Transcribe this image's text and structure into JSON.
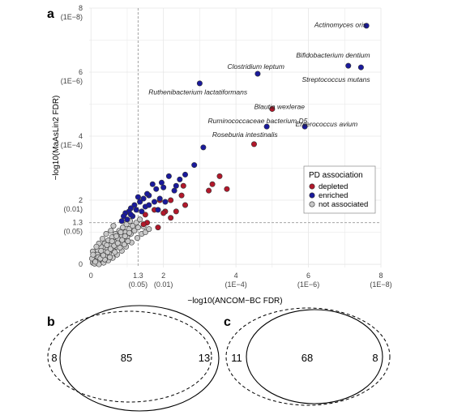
{
  "panels": {
    "a": "a",
    "b": "b",
    "c": "c"
  },
  "chart_data": {
    "type": "scatter",
    "xlabel": "−log10(ANCOM−BC FDR)",
    "ylabel": "−log10(MaAsLin2 FDR)",
    "xlim": [
      -0.05,
      8.0
    ],
    "ylim": [
      -0.1,
      8.0
    ],
    "grid": true,
    "threshold_lines": {
      "x": 1.3,
      "y": 1.3
    },
    "x_ticks": [
      {
        "v": 0,
        "label": "0",
        "sub": ""
      },
      {
        "v": 1.3,
        "label": "1.3",
        "sub": "(0.05)"
      },
      {
        "v": 2,
        "label": "2",
        "sub": "(0.01)"
      },
      {
        "v": 4,
        "label": "4",
        "sub": "(1E−4)"
      },
      {
        "v": 6,
        "label": "6",
        "sub": "(1E−6)"
      },
      {
        "v": 8,
        "label": "8",
        "sub": "(1E−8)"
      }
    ],
    "y_ticks": [
      {
        "v": 0,
        "label": "0",
        "sub": ""
      },
      {
        "v": 1.3,
        "label": "1.3",
        "sub": "(0.05)"
      },
      {
        "v": 2,
        "label": "2",
        "sub": "(0.01)"
      },
      {
        "v": 4,
        "label": "4",
        "sub": "(1E−4)"
      },
      {
        "v": 6,
        "label": "6",
        "sub": "(1E−6)"
      },
      {
        "v": 8,
        "label": "8",
        "sub": "(1E−8)"
      }
    ],
    "legend": {
      "title": "PD association",
      "position": "right",
      "entries": [
        {
          "label": "depleted",
          "color": "#b2182b"
        },
        {
          "label": "enriched",
          "color": "#1a1a9c"
        },
        {
          "label": "not associated",
          "color": "#c8c8c8"
        }
      ]
    },
    "annotations": [
      {
        "text": "Actinomyces oris",
        "x": 7.6,
        "y": 7.4,
        "anchor": "end"
      },
      {
        "text": "Bifidobacterium dentium",
        "x": 7.7,
        "y": 6.45,
        "anchor": "end"
      },
      {
        "text": "Streptococcus mutans",
        "x": 7.7,
        "y": 5.7,
        "anchor": "end"
      },
      {
        "text": "Clostridium leptum",
        "x": 4.55,
        "y": 6.1,
        "anchor": "middle"
      },
      {
        "text": "Ruthenibacterium lactatiformans",
        "x": 2.95,
        "y": 5.3,
        "anchor": "middle"
      },
      {
        "text": "Blautia wexlerae",
        "x": 5.2,
        "y": 4.85,
        "anchor": "middle"
      },
      {
        "text": "Ruminococcaceae bacterium D5",
        "x": 4.6,
        "y": 4.4,
        "anchor": "middle"
      },
      {
        "text": "Enterococcus avium",
        "x": 6.5,
        "y": 4.3,
        "anchor": "middle"
      },
      {
        "text": "Roseburia intestinalis",
        "x": 4.25,
        "y": 3.97,
        "anchor": "middle"
      }
    ],
    "series": [
      {
        "name": "enriched",
        "color": "#1a1a9c",
        "points": [
          [
            7.6,
            7.45
          ],
          [
            7.1,
            6.2
          ],
          [
            7.45,
            6.15
          ],
          [
            4.6,
            5.95
          ],
          [
            3.0,
            5.65
          ],
          [
            4.85,
            4.3
          ],
          [
            5.9,
            4.3
          ],
          [
            3.1,
            3.65
          ],
          [
            2.85,
            3.1
          ],
          [
            2.6,
            2.8
          ],
          [
            2.45,
            2.65
          ],
          [
            2.35,
            2.45
          ],
          [
            2.15,
            2.75
          ],
          [
            2.0,
            2.4
          ],
          [
            1.95,
            2.55
          ],
          [
            1.8,
            2.35
          ],
          [
            1.7,
            2.5
          ],
          [
            1.6,
            2.15
          ],
          [
            1.55,
            2.2
          ],
          [
            1.45,
            2.05
          ],
          [
            1.35,
            1.95
          ],
          [
            1.3,
            2.1
          ],
          [
            1.2,
            1.85
          ],
          [
            1.1,
            1.75
          ],
          [
            1.05,
            1.65
          ],
          [
            0.95,
            1.6
          ],
          [
            0.9,
            1.5
          ],
          [
            2.05,
            1.95
          ],
          [
            1.75,
            1.95
          ],
          [
            1.4,
            1.65
          ],
          [
            1.15,
            1.5
          ],
          [
            1.0,
            1.4
          ],
          [
            0.85,
            1.35
          ],
          [
            1.9,
            2.05
          ],
          [
            1.5,
            1.8
          ],
          [
            1.25,
            1.7
          ],
          [
            1.6,
            1.85
          ],
          [
            2.3,
            2.3
          ],
          [
            1.85,
            1.7
          ],
          [
            1.1,
            1.55
          ]
        ]
      },
      {
        "name": "depleted",
        "color": "#b2182b",
        "points": [
          [
            5.0,
            4.85
          ],
          [
            4.5,
            3.75
          ],
          [
            3.55,
            2.75
          ],
          [
            3.35,
            2.5
          ],
          [
            3.75,
            2.35
          ],
          [
            3.25,
            2.3
          ],
          [
            2.55,
            2.45
          ],
          [
            2.5,
            2.15
          ],
          [
            2.6,
            1.85
          ],
          [
            2.2,
            2.0
          ],
          [
            1.9,
            2.0
          ],
          [
            2.05,
            1.65
          ],
          [
            2.35,
            1.65
          ],
          [
            2.0,
            1.6
          ],
          [
            1.75,
            1.7
          ],
          [
            1.55,
            1.3
          ],
          [
            1.45,
            1.25
          ],
          [
            1.85,
            1.15
          ],
          [
            2.2,
            1.45
          ],
          [
            1.5,
            1.55
          ]
        ]
      },
      {
        "name": "not associated",
        "color": "#c8c8c8",
        "points": [
          [
            0.05,
            0.05
          ],
          [
            0.1,
            0.12
          ],
          [
            0.15,
            0.2
          ],
          [
            0.08,
            0.25
          ],
          [
            0.2,
            0.1
          ],
          [
            0.25,
            0.3
          ],
          [
            0.3,
            0.18
          ],
          [
            0.12,
            0.35
          ],
          [
            0.35,
            0.4
          ],
          [
            0.4,
            0.25
          ],
          [
            0.18,
            0.45
          ],
          [
            0.45,
            0.5
          ],
          [
            0.5,
            0.35
          ],
          [
            0.28,
            0.55
          ],
          [
            0.55,
            0.6
          ],
          [
            0.6,
            0.45
          ],
          [
            0.38,
            0.65
          ],
          [
            0.65,
            0.7
          ],
          [
            0.7,
            0.55
          ],
          [
            0.48,
            0.75
          ],
          [
            0.75,
            0.8
          ],
          [
            0.8,
            0.65
          ],
          [
            0.58,
            0.85
          ],
          [
            0.85,
            0.9
          ],
          [
            0.9,
            0.75
          ],
          [
            0.68,
            0.95
          ],
          [
            0.95,
            1.0
          ],
          [
            1.0,
            0.85
          ],
          [
            0.78,
            1.05
          ],
          [
            1.05,
            1.1
          ],
          [
            1.1,
            0.95
          ],
          [
            0.88,
            1.15
          ],
          [
            1.15,
            1.2
          ],
          [
            1.2,
            1.05
          ],
          [
            0.98,
            1.25
          ],
          [
            1.25,
            1.3
          ],
          [
            1.3,
            1.15
          ],
          [
            1.08,
            1.35
          ],
          [
            1.35,
            1.4
          ],
          [
            0.55,
            1.05
          ],
          [
            0.62,
            1.2
          ],
          [
            0.42,
            0.95
          ],
          [
            0.32,
            0.8
          ],
          [
            0.22,
            0.65
          ],
          [
            0.15,
            0.55
          ],
          [
            0.05,
            0.4
          ],
          [
            0.03,
            0.18
          ],
          [
            0.1,
            0.02
          ],
          [
            0.22,
            0.0
          ],
          [
            0.35,
            0.05
          ],
          [
            0.48,
            0.12
          ],
          [
            0.6,
            0.2
          ],
          [
            0.72,
            0.3
          ],
          [
            0.85,
            0.42
          ],
          [
            0.97,
            0.55
          ],
          [
            1.12,
            0.68
          ],
          [
            1.28,
            0.82
          ],
          [
            1.4,
            0.95
          ],
          [
            0.52,
            0.22
          ],
          [
            0.66,
            0.38
          ],
          [
            0.8,
            0.52
          ],
          [
            0.92,
            0.62
          ],
          [
            1.02,
            0.72
          ],
          [
            0.28,
            0.42
          ],
          [
            0.18,
            0.3
          ],
          [
            0.44,
            0.6
          ],
          [
            0.58,
            0.72
          ],
          [
            0.7,
            0.88
          ],
          [
            0.82,
            1.0
          ],
          [
            1.5,
            1.0
          ],
          [
            1.6,
            1.1
          ],
          [
            1.45,
            1.18
          ],
          [
            0.12,
            0.08
          ],
          [
            0.2,
            0.22
          ],
          [
            0.38,
            0.15
          ],
          [
            0.06,
            0.3
          ],
          [
            0.26,
            0.18
          ],
          [
            0.34,
            0.28
          ],
          [
            0.46,
            0.38
          ],
          [
            0.54,
            0.48
          ],
          [
            0.64,
            0.58
          ],
          [
            0.74,
            0.66
          ],
          [
            0.86,
            0.76
          ],
          [
            0.94,
            0.88
          ],
          [
            1.06,
            0.98
          ]
        ]
      }
    ]
  },
  "venn": [
    {
      "panel": "b",
      "left_only": "8",
      "both": "85",
      "right_only": "13"
    },
    {
      "panel": "c",
      "left_only": "11",
      "both": "68",
      "right_only": "8"
    }
  ]
}
